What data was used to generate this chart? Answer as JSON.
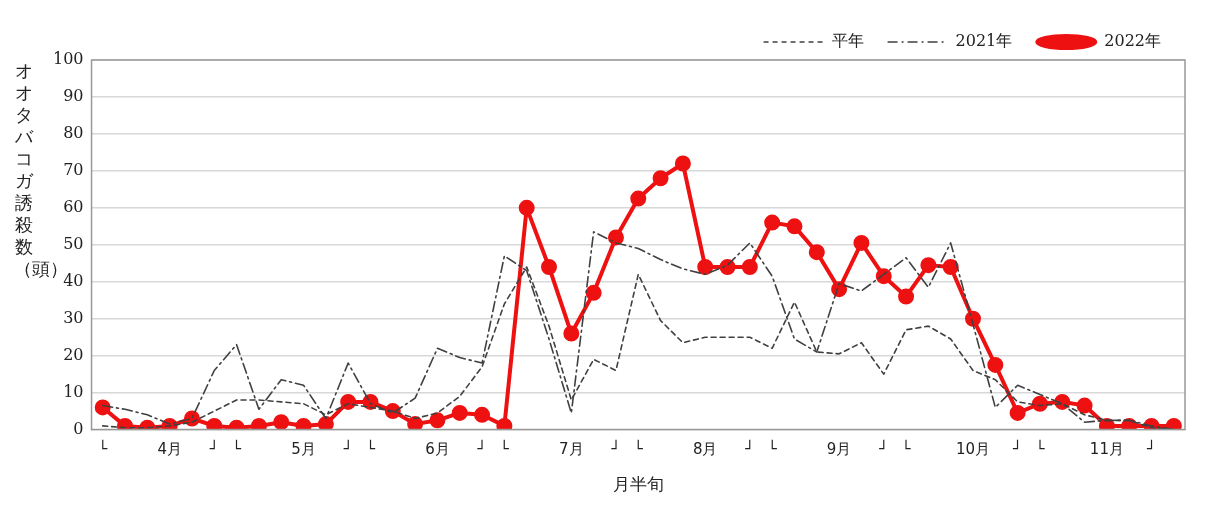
{
  "chart_data": {
    "type": "line",
    "xlabel": "月半旬",
    "ylabel": "オオタバコガ誘殺数（頭）",
    "categories": [
      "└",
      null,
      null,
      "4月",
      null,
      "┘",
      "└",
      null,
      null,
      "5月",
      null,
      "┘",
      "└",
      null,
      null,
      "6月",
      null,
      "┘",
      "└",
      null,
      null,
      "7月",
      null,
      "┘",
      "└",
      null,
      null,
      "8月",
      null,
      "┘",
      "└",
      null,
      null,
      "9月",
      null,
      "┘",
      "└",
      null,
      null,
      "10月",
      null,
      "┘",
      "└",
      null,
      null,
      "11月",
      null,
      "┘",
      null
    ],
    "series": [
      {
        "name": "平年",
        "color": "#404040",
        "line_style": "dashed",
        "marker": "none",
        "values": [
          1,
          0.5,
          0.5,
          1,
          2,
          5,
          8,
          8,
          7.5,
          7,
          4,
          7,
          6,
          5,
          3,
          4.5,
          9,
          17,
          34,
          44,
          28,
          8,
          19,
          16,
          42,
          29.5,
          23.5,
          25,
          25,
          25,
          22,
          34.5,
          21,
          20.5,
          23.5,
          15,
          27,
          28,
          24.5,
          16,
          13.5,
          7.5,
          6.5,
          7,
          4,
          2.5,
          2.5,
          0.5,
          0
        ]
      },
      {
        "name": "2021年",
        "color": "#404040",
        "line_style": "dashdot",
        "marker": "none",
        "values": [
          6.5,
          5.5,
          4,
          1.5,
          3,
          16,
          23,
          5.5,
          13.5,
          12,
          3,
          18,
          7,
          4.5,
          8.5,
          22,
          19.5,
          18,
          47,
          43,
          24.5,
          4.5,
          53.5,
          50.5,
          49,
          46,
          43.5,
          42,
          44.5,
          50.5,
          41.5,
          24.5,
          21,
          39.5,
          37.5,
          42,
          46.5,
          38.5,
          50.5,
          28.5,
          6,
          12,
          9.5,
          7,
          2,
          2.5,
          2.5,
          1,
          0
        ]
      },
      {
        "name": "2022年",
        "color": "#ee1111",
        "line_style": "solid",
        "marker": "circle",
        "values": [
          6,
          1,
          0.5,
          1,
          3,
          1,
          0.5,
          1,
          2,
          1,
          1.5,
          7.5,
          7.5,
          5,
          1.5,
          2.5,
          4.5,
          4,
          1,
          60,
          44,
          26,
          37,
          52,
          62.5,
          68,
          72,
          44,
          44,
          44,
          56,
          55,
          48,
          38,
          50.5,
          41.5,
          36,
          44.5,
          44,
          30,
          17.5,
          4.5,
          7,
          7.5,
          6.5,
          1,
          1,
          1,
          1
        ]
      }
    ],
    "ylim": [
      0,
      100
    ],
    "yticks": [
      0,
      10,
      20,
      30,
      40,
      50,
      60,
      70,
      80,
      90,
      100
    ],
    "grid": "y",
    "legend": "top right"
  }
}
